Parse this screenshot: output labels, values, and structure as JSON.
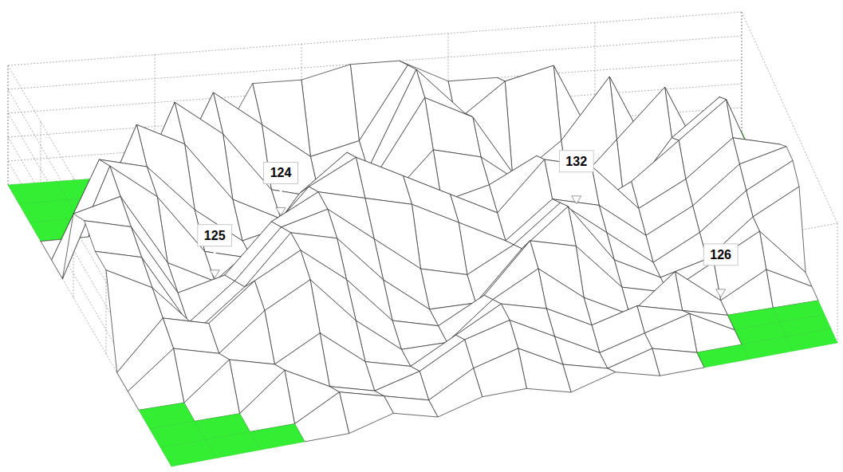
{
  "chart_data": {
    "type": "surface",
    "x": [
      0,
      1,
      2,
      3,
      4,
      5,
      6,
      7,
      8,
      9,
      10,
      11,
      12,
      13,
      14,
      15
    ],
    "y": [
      0,
      1,
      2,
      3,
      4,
      5,
      6,
      7,
      8,
      9,
      10,
      11,
      12,
      13,
      14,
      15
    ],
    "z": [
      [
        0,
        0,
        0,
        0,
        0,
        7,
        7,
        8,
        8,
        6,
        6,
        0,
        0,
        0,
        0,
        0
      ],
      [
        0,
        0,
        0,
        0,
        8,
        5,
        2,
        3,
        9,
        4,
        7,
        8,
        0,
        0,
        0,
        0
      ],
      [
        0,
        0,
        0,
        9,
        6,
        1,
        0,
        2,
        10,
        6,
        0,
        3,
        8,
        0,
        0,
        0
      ],
      [
        0,
        0,
        9,
        7,
        2,
        0,
        0,
        3,
        9,
        7,
        1,
        0,
        4,
        8,
        0,
        0
      ],
      [
        0,
        8,
        7,
        3,
        0,
        1,
        0,
        2,
        6,
        5,
        2,
        0,
        0,
        5,
        8,
        0
      ],
      [
        0,
        9,
        6,
        1,
        0,
        5,
        8,
        4,
        3,
        4,
        6,
        1,
        3,
        6,
        9,
        0
      ],
      [
        7,
        8,
        2,
        0,
        3,
        7,
        9,
        7,
        5,
        3,
        7,
        6,
        2,
        4,
        7,
        6
      ],
      [
        8,
        7,
        1,
        2,
        6,
        8,
        7,
        6,
        4,
        2,
        5,
        4,
        1,
        3,
        6,
        7
      ],
      [
        7,
        6,
        0,
        3,
        7,
        8,
        5,
        2,
        1,
        3,
        6,
        3,
        0,
        2,
        5,
        7
      ],
      [
        7,
        5,
        1,
        4,
        8,
        7,
        3,
        0,
        0,
        4,
        7,
        2,
        0,
        1,
        4,
        6
      ],
      [
        0,
        4,
        3,
        6,
        8,
        5,
        1,
        0,
        2,
        6,
        5,
        1,
        0,
        2,
        4,
        0
      ],
      [
        0,
        3,
        2,
        5,
        7,
        3,
        0,
        0,
        3,
        5,
        2,
        0,
        3,
        0,
        2,
        0
      ],
      [
        0,
        0,
        3,
        2,
        4,
        1,
        0,
        2,
        4,
        3,
        1,
        2,
        1,
        0,
        0,
        0
      ],
      [
        0,
        0,
        0,
        3,
        1,
        0,
        1,
        3,
        4,
        2,
        0,
        1,
        2,
        0,
        0,
        0
      ],
      [
        0,
        0,
        0,
        0,
        2,
        1,
        0,
        2,
        3,
        1,
        0,
        1,
        0,
        0,
        0,
        0
      ],
      [
        0,
        0,
        0,
        0,
        0,
        1,
        0,
        1,
        1,
        0,
        1,
        0,
        0,
        0,
        0,
        0
      ]
    ],
    "xlim": [
      0,
      15
    ],
    "ylim": [
      0,
      15
    ],
    "zlim": [
      0,
      10
    ],
    "xticks": [
      0,
      3,
      6,
      9,
      12,
      15
    ],
    "yticks": [
      0,
      3,
      6,
      9,
      12,
      15
    ],
    "zticks": [
      0,
      2,
      4,
      6,
      8,
      10
    ],
    "grid": true,
    "tick_labels": false,
    "annotations": [
      {
        "text": "124",
        "x": 5,
        "y": 3
      },
      {
        "text": "132",
        "x": 11,
        "y": 4
      },
      {
        "text": "125",
        "x": 3,
        "y": 6
      },
      {
        "text": "126",
        "x": 13,
        "y": 11
      }
    ]
  }
}
